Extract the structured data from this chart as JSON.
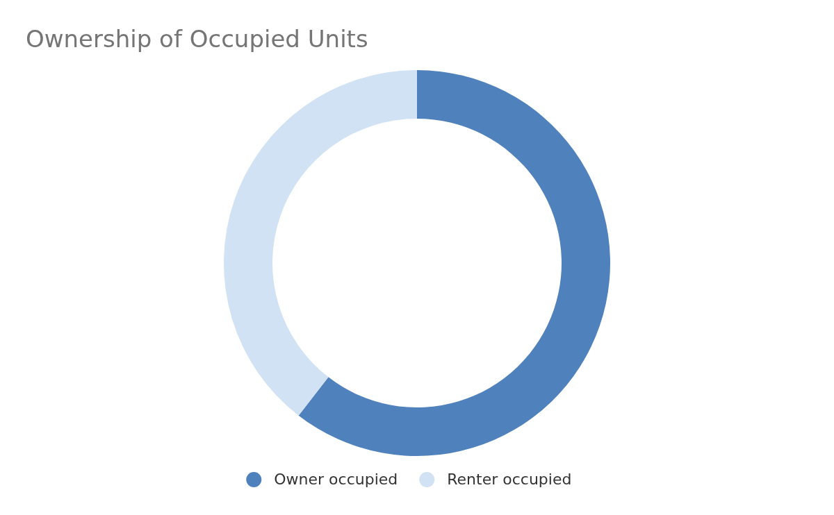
{
  "chart_data": {
    "type": "donut",
    "title": "Ownership of Occupied Units",
    "categories": [
      "Owner occupied",
      "Renter occupied"
    ],
    "values": [
      60.5,
      39.5
    ],
    "colors": [
      "#4f81bd",
      "#d0e2f3"
    ],
    "legend": "bottom"
  }
}
